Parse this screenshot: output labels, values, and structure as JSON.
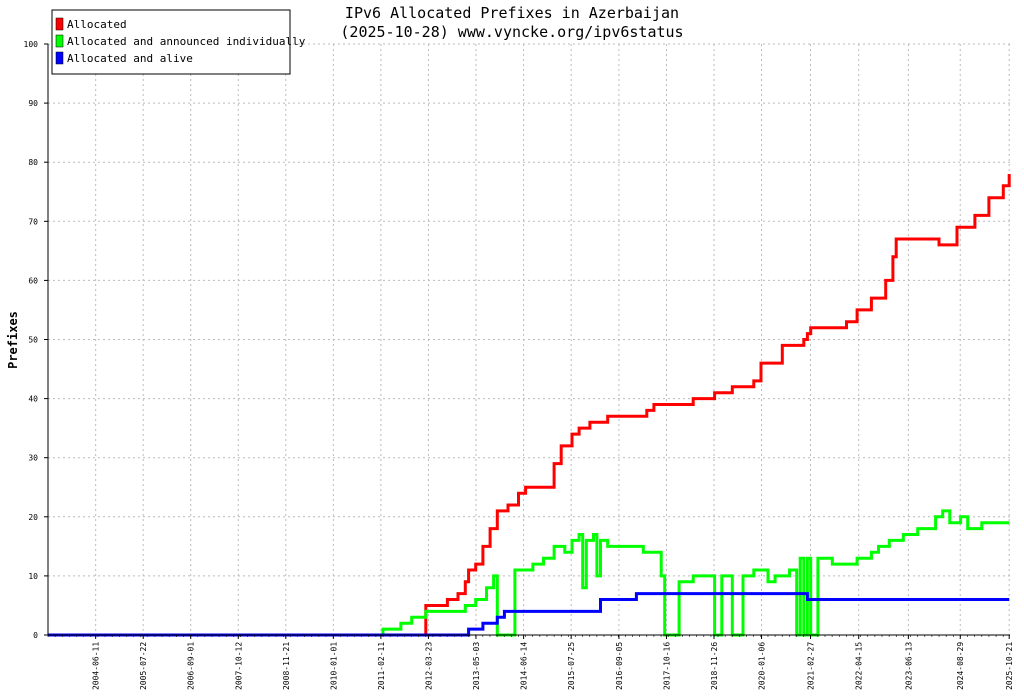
{
  "chart_data": {
    "type": "line",
    "title": "IPv6 Allocated Prefixes in Azerbaijan",
    "subtitle": "(2025-10-28) www.vyncke.org/ipv6status",
    "ylabel": "Prefixes",
    "xlabel": "",
    "ylim": [
      0,
      100
    ],
    "yticks": [
      0,
      10,
      20,
      30,
      40,
      50,
      60,
      70,
      80,
      90,
      100
    ],
    "xlim": [
      "2003-05-01",
      "2025-10-28"
    ],
    "xticks": [
      "2004-06-11",
      "2005-07-22",
      "2006-09-01",
      "2007-10-12",
      "2008-11-21",
      "2010-01-01",
      "2011-02-11",
      "2012-03-23",
      "2013-05-03",
      "2014-06-14",
      "2015-07-25",
      "2016-09-05",
      "2017-10-16",
      "2018-11-26",
      "2020-01-06",
      "2021-02-27",
      "2022-04-15",
      "2023-06-13",
      "2024-08-29",
      "2025-10-21"
    ],
    "grid": true,
    "legend_position": "top-left",
    "series": [
      {
        "name": "Allocated",
        "color": "#ff0000",
        "points": [
          [
            "2003-05-01",
            0
          ],
          [
            "2011-12-01",
            0
          ],
          [
            "2012-03-01",
            5
          ],
          [
            "2012-08-01",
            5
          ],
          [
            "2012-09-01",
            6
          ],
          [
            "2012-12-01",
            7
          ],
          [
            "2013-02-01",
            9
          ],
          [
            "2013-03-01",
            11
          ],
          [
            "2013-05-01",
            12
          ],
          [
            "2013-07-01",
            15
          ],
          [
            "2013-09-01",
            18
          ],
          [
            "2013-11-01",
            21
          ],
          [
            "2014-02-01",
            22
          ],
          [
            "2014-05-01",
            24
          ],
          [
            "2014-07-01",
            25
          ],
          [
            "2015-02-01",
            25
          ],
          [
            "2015-03-01",
            29
          ],
          [
            "2015-05-01",
            32
          ],
          [
            "2015-08-01",
            34
          ],
          [
            "2015-10-01",
            35
          ],
          [
            "2016-01-01",
            36
          ],
          [
            "2016-06-01",
            37
          ],
          [
            "2017-04-01",
            37
          ],
          [
            "2017-05-01",
            38
          ],
          [
            "2017-07-01",
            39
          ],
          [
            "2018-06-01",
            40
          ],
          [
            "2018-12-01",
            41
          ],
          [
            "2019-05-01",
            42
          ],
          [
            "2019-11-01",
            43
          ],
          [
            "2020-01-01",
            46
          ],
          [
            "2020-07-01",
            49
          ],
          [
            "2021-01-01",
            50
          ],
          [
            "2021-02-01",
            51
          ],
          [
            "2021-03-01",
            52
          ],
          [
            "2022-01-01",
            53
          ],
          [
            "2022-04-01",
            55
          ],
          [
            "2022-08-01",
            57
          ],
          [
            "2022-12-01",
            60
          ],
          [
            "2023-02-01",
            64
          ],
          [
            "2023-03-01",
            67
          ],
          [
            "2024-03-01",
            66
          ],
          [
            "2024-08-01",
            69
          ],
          [
            "2025-01-01",
            71
          ],
          [
            "2025-05-01",
            74
          ],
          [
            "2025-09-01",
            76
          ],
          [
            "2025-10-21",
            78
          ]
        ]
      },
      {
        "name": "Allocated and announced individually",
        "color": "#00ff00",
        "points": [
          [
            "2003-05-01",
            0
          ],
          [
            "2011-02-01",
            0
          ],
          [
            "2011-03-01",
            1
          ],
          [
            "2011-08-01",
            2
          ],
          [
            "2011-11-01",
            3
          ],
          [
            "2012-03-01",
            4
          ],
          [
            "2012-11-01",
            4
          ],
          [
            "2013-02-01",
            5
          ],
          [
            "2013-05-01",
            6
          ],
          [
            "2013-08-01",
            8
          ],
          [
            "2013-10-01",
            10
          ],
          [
            "2013-11-01",
            0
          ],
          [
            "2014-03-01",
            0
          ],
          [
            "2014-04-01",
            11
          ],
          [
            "2014-06-01",
            11
          ],
          [
            "2014-09-01",
            12
          ],
          [
            "2014-12-01",
            13
          ],
          [
            "2015-03-01",
            15
          ],
          [
            "2015-06-01",
            14
          ],
          [
            "2015-08-01",
            16
          ],
          [
            "2015-10-01",
            17
          ],
          [
            "2015-11-01",
            8
          ],
          [
            "2015-12-01",
            16
          ],
          [
            "2016-02-01",
            17
          ],
          [
            "2016-03-01",
            10
          ],
          [
            "2016-04-01",
            16
          ],
          [
            "2016-06-01",
            15
          ],
          [
            "2017-04-01",
            14
          ],
          [
            "2017-09-01",
            10
          ],
          [
            "2017-10-01",
            0
          ],
          [
            "2018-01-01",
            0
          ],
          [
            "2018-02-01",
            9
          ],
          [
            "2018-06-01",
            10
          ],
          [
            "2018-12-01",
            0
          ],
          [
            "2019-02-01",
            10
          ],
          [
            "2019-05-01",
            0
          ],
          [
            "2019-08-01",
            10
          ],
          [
            "2019-11-01",
            11
          ],
          [
            "2020-03-01",
            9
          ],
          [
            "2020-05-01",
            10
          ],
          [
            "2020-09-01",
            11
          ],
          [
            "2020-11-01",
            0
          ],
          [
            "2020-12-01",
            13
          ],
          [
            "2021-01-01",
            0
          ],
          [
            "2021-02-01",
            13
          ],
          [
            "2021-03-01",
            0
          ],
          [
            "2021-05-01",
            13
          ],
          [
            "2021-09-01",
            12
          ],
          [
            "2022-04-01",
            13
          ],
          [
            "2022-08-01",
            14
          ],
          [
            "2022-10-01",
            15
          ],
          [
            "2023-01-01",
            16
          ],
          [
            "2023-05-01",
            17
          ],
          [
            "2023-09-01",
            18
          ],
          [
            "2024-02-01",
            20
          ],
          [
            "2024-04-01",
            21
          ],
          [
            "2024-06-01",
            19
          ],
          [
            "2024-09-01",
            20
          ],
          [
            "2024-11-01",
            18
          ],
          [
            "2025-03-01",
            19
          ],
          [
            "2025-10-21",
            19
          ]
        ]
      },
      {
        "name": "Allocated and alive",
        "color": "#0000ff",
        "points": [
          [
            "2003-05-01",
            0
          ],
          [
            "2013-01-01",
            0
          ],
          [
            "2013-03-01",
            1
          ],
          [
            "2013-07-01",
            2
          ],
          [
            "2013-11-01",
            3
          ],
          [
            "2014-01-01",
            4
          ],
          [
            "2016-02-01",
            4
          ],
          [
            "2016-04-01",
            6
          ],
          [
            "2017-02-01",
            7
          ],
          [
            "2021-01-01",
            7
          ],
          [
            "2021-02-01",
            6
          ],
          [
            "2025-10-21",
            6
          ]
        ]
      }
    ]
  }
}
